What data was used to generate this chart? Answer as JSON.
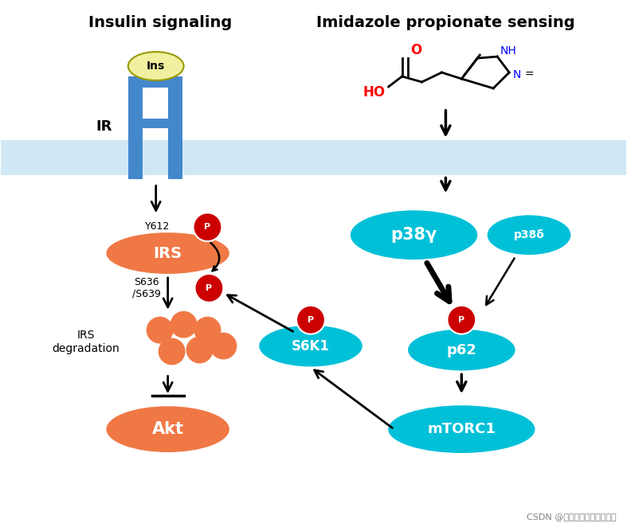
{
  "title_left": "Insulin signaling",
  "title_right": "Imidazole propionate sensing",
  "background_color": "#ffffff",
  "membrane_color": "#d0e8f5",
  "cyan_color": "#00c0d8",
  "orange_color": "#f07845",
  "red_color": "#cc0000",
  "bar_color": "#4488cc",
  "ins_color": "#f0f0a0",
  "watermark": "CSDN @代谢组学相关资讯分享"
}
